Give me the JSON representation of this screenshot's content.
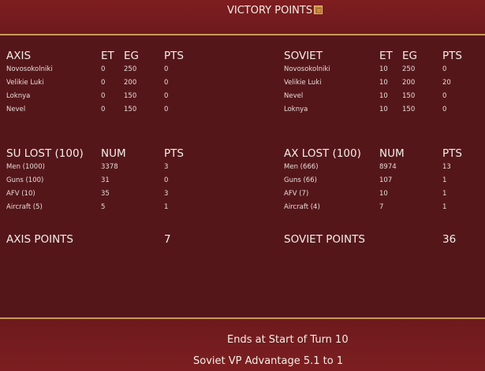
{
  "header": {
    "title": "VICTORY POINTS",
    "icon": "map-icon"
  },
  "axis_objectives": {
    "headers": [
      "AXIS",
      "ET",
      "EG",
      "PTS"
    ],
    "rows": [
      [
        "Novosokolniki",
        "0",
        "250",
        "0"
      ],
      [
        "Velikie Luki",
        "0",
        "200",
        "0"
      ],
      [
        "Loknya",
        "0",
        "150",
        "0"
      ],
      [
        "Nevel",
        "0",
        "150",
        "0"
      ]
    ]
  },
  "soviet_objectives": {
    "headers": [
      "SOVIET",
      "ET",
      "EG",
      "PTS"
    ],
    "rows": [
      [
        "Novosokolniki",
        "10",
        "250",
        "0"
      ],
      [
        "Velikie Luki",
        "10",
        "200",
        "20"
      ],
      [
        "Nevel",
        "10",
        "150",
        "0"
      ],
      [
        "Loknya",
        "10",
        "150",
        "0"
      ]
    ]
  },
  "su_lost": {
    "headers": [
      "SU LOST (100)",
      "NUM",
      "PTS"
    ],
    "rows": [
      [
        "Men (1000)",
        "3378",
        "3"
      ],
      [
        "Guns (100)",
        "31",
        "0"
      ],
      [
        "AFV (10)",
        "35",
        "3"
      ],
      [
        "Aircraft (5)",
        "5",
        "1"
      ]
    ]
  },
  "ax_lost": {
    "headers": [
      "AX LOST (100)",
      "NUM",
      "PTS"
    ],
    "rows": [
      [
        "Men (666)",
        "8974",
        "13"
      ],
      [
        "Guns (66)",
        "107",
        "1"
      ],
      [
        "AFV (7)",
        "10",
        "1"
      ],
      [
        "Aircraft (4)",
        "7",
        "1"
      ]
    ]
  },
  "totals": {
    "axis_label": "AXIS POINTS",
    "axis_value": "7",
    "soviet_label": "SOVIET POINTS",
    "soviet_value": "36"
  },
  "footer": {
    "ends": "Ends at Start of Turn 10",
    "advantage": "Soviet VP Advantage 5.1 to 1"
  }
}
